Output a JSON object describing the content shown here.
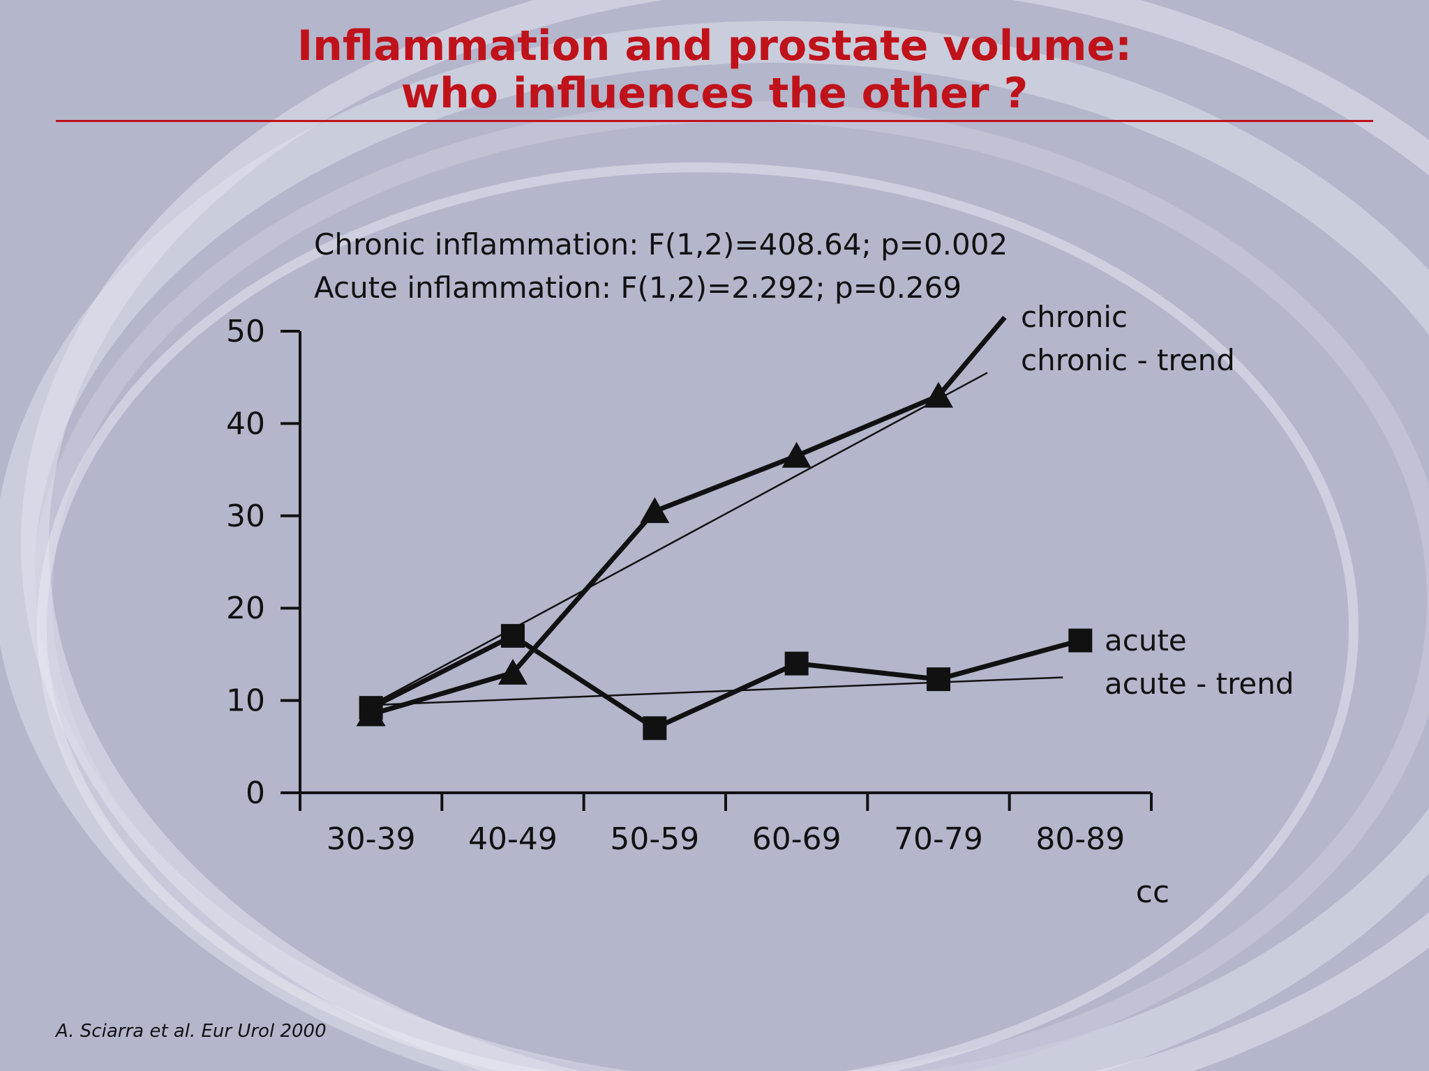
{
  "slide": {
    "title_line1": "Inflammation and prostate volume:",
    "title_line2": "who influences the other ?",
    "stat_chronic": "Chronic inflammation: F(1,2)=408.64; p=0.002",
    "stat_acute": "Acute inflammation: F(1,2)=2.292; p=0.269",
    "source": "A. Sciarra et al. Eur Urol 2000",
    "title_color": "#c0121a",
    "background_color": "#b4b6cc"
  },
  "legend": {
    "chronic": "chronic",
    "chronic_trend": "chronic - trend",
    "acute": "acute",
    "acute_trend": "acute - trend"
  },
  "chart_data": {
    "type": "line",
    "categories": [
      "30-39",
      "40-49",
      "50-59",
      "60-69",
      "70-79",
      "80-89"
    ],
    "xlabel": "cc",
    "ylabel": "",
    "ylim": [
      0,
      50
    ],
    "yticks": [
      0,
      10,
      20,
      30,
      40,
      50
    ],
    "grid": false,
    "series": [
      {
        "name": "chronic",
        "marker": "triangle",
        "values": [
          8.5,
          13,
          30.5,
          36.5,
          43,
          null
        ],
        "line_end": 51.5
      },
      {
        "name": "chronic - trend",
        "style": "thin-line",
        "start": 9.5,
        "end": 45.5
      },
      {
        "name": "acute",
        "marker": "square",
        "values": [
          9.2,
          17,
          7,
          14,
          12.3,
          16.5
        ]
      },
      {
        "name": "acute - trend",
        "style": "thin-line",
        "start": 9.5,
        "end": 12.5
      }
    ]
  }
}
